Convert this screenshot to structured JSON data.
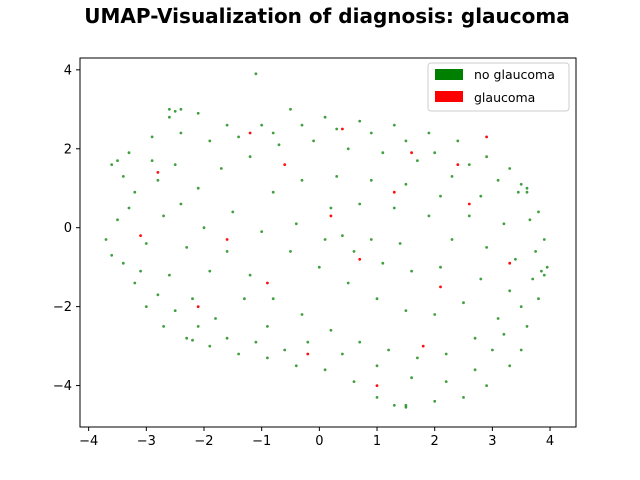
{
  "chart_data": {
    "type": "scatter",
    "title": "UMAP-Visualization of diagnosis: glaucoma",
    "xlabel": "",
    "ylabel": "",
    "xlim": [
      -4.15,
      4.45
    ],
    "ylim": [
      -5.05,
      4.3
    ],
    "x_ticks": [
      -4,
      -3,
      -2,
      -1,
      0,
      1,
      2,
      3,
      4
    ],
    "y_ticks": [
      -4,
      -2,
      0,
      2,
      4
    ],
    "x_tick_labels": [
      "−4",
      "−3",
      "−2",
      "−1",
      "0",
      "1",
      "2",
      "3",
      "4"
    ],
    "y_tick_labels": [
      "−4",
      "−2",
      "0",
      "2",
      "4"
    ],
    "grid": false,
    "legend_position": "top-right",
    "series": [
      {
        "name": "no glaucoma",
        "color": "#008000",
        "points": [
          [
            -3.6,
            1.6
          ],
          [
            -3.4,
            1.3
          ],
          [
            -3.2,
            0.9
          ],
          [
            -3.5,
            0.2
          ],
          [
            -3.7,
            -0.3
          ],
          [
            -3.4,
            -0.9
          ],
          [
            -3.2,
            -1.4
          ],
          [
            -3.0,
            -2.0
          ],
          [
            -2.7,
            -2.5
          ],
          [
            -2.3,
            -2.8
          ],
          [
            -1.9,
            -3.0
          ],
          [
            -1.4,
            -3.2
          ],
          [
            -0.9,
            -3.3
          ],
          [
            -0.4,
            -3.5
          ],
          [
            0.1,
            -3.6
          ],
          [
            0.6,
            -3.9
          ],
          [
            1.0,
            -4.3
          ],
          [
            1.5,
            -4.5
          ],
          [
            2.0,
            -4.4
          ],
          [
            2.5,
            -4.3
          ],
          [
            2.9,
            -4.0
          ],
          [
            3.3,
            -3.5
          ],
          [
            3.5,
            -3.1
          ],
          [
            3.6,
            -2.5
          ],
          [
            3.8,
            -1.8
          ],
          [
            3.95,
            -1.0
          ],
          [
            3.9,
            -0.3
          ],
          [
            3.8,
            0.4
          ],
          [
            3.6,
            1.0
          ],
          [
            3.3,
            1.5
          ],
          [
            2.9,
            1.8
          ],
          [
            2.4,
            2.2
          ],
          [
            1.9,
            2.4
          ],
          [
            1.3,
            2.6
          ],
          [
            0.7,
            2.7
          ],
          [
            0.1,
            2.8
          ],
          [
            -0.5,
            3.0
          ],
          [
            -1.0,
            2.6
          ],
          [
            -1.6,
            2.6
          ],
          [
            -2.1,
            2.9
          ],
          [
            -2.6,
            2.8
          ],
          [
            -2.9,
            2.3
          ],
          [
            -3.3,
            1.9
          ],
          [
            -2.8,
            1.2
          ],
          [
            -2.4,
            0.6
          ],
          [
            -2.0,
            0.0
          ],
          [
            -1.6,
            -0.6
          ],
          [
            -1.2,
            -1.2
          ],
          [
            -0.8,
            -1.8
          ],
          [
            -0.3,
            -2.2
          ],
          [
            0.2,
            -2.6
          ],
          [
            0.7,
            -2.9
          ],
          [
            1.2,
            -3.1
          ],
          [
            1.7,
            -3.3
          ],
          [
            2.2,
            -3.2
          ],
          [
            2.7,
            -2.8
          ],
          [
            3.1,
            -2.3
          ],
          [
            3.3,
            -1.6
          ],
          [
            3.4,
            -0.8
          ],
          [
            3.2,
            0.1
          ],
          [
            2.8,
            0.8
          ],
          [
            2.3,
            1.3
          ],
          [
            1.7,
            1.7
          ],
          [
            1.1,
            1.9
          ],
          [
            0.5,
            2.0
          ],
          [
            -0.1,
            2.2
          ],
          [
            -0.7,
            2.1
          ],
          [
            -1.2,
            1.8
          ],
          [
            -1.7,
            1.5
          ],
          [
            -2.1,
            1.0
          ],
          [
            -1.5,
            0.4
          ],
          [
            -1.0,
            -0.1
          ],
          [
            -0.5,
            -0.6
          ],
          [
            0.0,
            -1.0
          ],
          [
            0.5,
            -1.4
          ],
          [
            1.0,
            -1.8
          ],
          [
            1.5,
            -2.1
          ],
          [
            2.0,
            -2.2
          ],
          [
            2.5,
            -1.9
          ],
          [
            2.8,
            -1.3
          ],
          [
            2.9,
            -0.5
          ],
          [
            2.6,
            0.3
          ],
          [
            2.1,
            0.8
          ],
          [
            1.5,
            1.1
          ],
          [
            0.9,
            1.2
          ],
          [
            0.3,
            1.3
          ],
          [
            -0.3,
            1.2
          ],
          [
            -0.8,
            0.9
          ],
          [
            -0.4,
            0.1
          ],
          [
            0.1,
            -0.3
          ],
          [
            0.6,
            -0.6
          ],
          [
            1.1,
            -0.9
          ],
          [
            1.6,
            -1.1
          ],
          [
            2.1,
            -1.0
          ],
          [
            2.3,
            -0.3
          ],
          [
            1.9,
            0.3
          ],
          [
            1.3,
            0.5
          ],
          [
            0.7,
            0.6
          ],
          [
            0.2,
            0.5
          ],
          [
            0.4,
            -0.2
          ],
          [
            0.9,
            -0.3
          ],
          [
            1.4,
            -0.4
          ],
          [
            -2.6,
            -1.2
          ],
          [
            -2.2,
            -1.8
          ],
          [
            -1.8,
            -2.3
          ],
          [
            -3.0,
            -0.4
          ],
          [
            -2.7,
            0.3
          ],
          [
            -2.3,
            -0.5
          ],
          [
            -1.9,
            -1.1
          ],
          [
            -1.3,
            -1.8
          ],
          [
            -0.9,
            -2.5
          ],
          [
            -0.2,
            -2.9
          ],
          [
            0.4,
            -3.2
          ],
          [
            1.0,
            -3.5
          ],
          [
            1.6,
            -3.8
          ],
          [
            2.2,
            -3.9
          ],
          [
            2.7,
            -3.6
          ],
          [
            3.0,
            -3.1
          ],
          [
            3.2,
            -2.7
          ],
          [
            3.5,
            -2.0
          ],
          [
            3.7,
            -1.3
          ],
          [
            3.75,
            -0.6
          ],
          [
            3.65,
            0.2
          ],
          [
            3.45,
            0.9
          ],
          [
            3.1,
            1.2
          ],
          [
            2.6,
            1.6
          ],
          [
            2.0,
            1.9
          ],
          [
            1.5,
            2.2
          ],
          [
            0.9,
            2.4
          ],
          [
            0.3,
            2.5
          ],
          [
            -0.3,
            2.6
          ],
          [
            -0.8,
            2.4
          ],
          [
            -1.4,
            2.3
          ],
          [
            -1.9,
            2.2
          ],
          [
            -2.4,
            2.4
          ],
          [
            -2.5,
            1.6
          ],
          [
            -2.9,
            1.7
          ],
          [
            -3.3,
            0.5
          ],
          [
            -3.6,
            -0.7
          ],
          [
            -3.1,
            -1.1
          ],
          [
            -2.8,
            -1.7
          ],
          [
            -2.5,
            -2.1
          ],
          [
            -2.1,
            -2.5
          ],
          [
            -1.6,
            -2.8
          ],
          [
            -1.1,
            -2.9
          ],
          [
            -0.6,
            -3.1
          ],
          [
            -1.1,
            3.9
          ],
          [
            -2.6,
            3.0
          ],
          [
            -2.5,
            2.95
          ],
          [
            -2.4,
            3.0
          ],
          [
            1.5,
            -4.55
          ],
          [
            1.3,
            -4.5
          ],
          [
            3.5,
            1.1
          ],
          [
            3.6,
            0.9
          ],
          [
            -3.5,
            1.7
          ],
          [
            -2.2,
            -2.85
          ],
          [
            3.85,
            -1.1
          ],
          [
            3.9,
            -1.2
          ]
        ]
      },
      {
        "name": "glaucoma",
        "color": "#ff0000",
        "points": [
          [
            -2.8,
            1.4
          ],
          [
            -1.6,
            -0.3
          ],
          [
            -0.6,
            1.6
          ],
          [
            0.7,
            -0.8
          ],
          [
            1.3,
            0.9
          ],
          [
            2.1,
            -1.5
          ],
          [
            2.6,
            0.6
          ],
          [
            1.8,
            -3.0
          ],
          [
            -0.2,
            -3.2
          ],
          [
            -2.1,
            -2.0
          ],
          [
            2.9,
            2.3
          ],
          [
            -1.2,
            2.4
          ],
          [
            0.4,
            2.5
          ],
          [
            3.3,
            -0.9
          ],
          [
            -3.1,
            -0.2
          ],
          [
            1.0,
            -4.0
          ],
          [
            2.4,
            1.6
          ],
          [
            -0.9,
            -1.4
          ],
          [
            0.2,
            0.3
          ],
          [
            1.6,
            1.9
          ]
        ]
      }
    ]
  },
  "legend": {
    "items": [
      {
        "label": "no glaucoma",
        "color": "#008000"
      },
      {
        "label": "glaucoma",
        "color": "#ff0000"
      }
    ]
  }
}
